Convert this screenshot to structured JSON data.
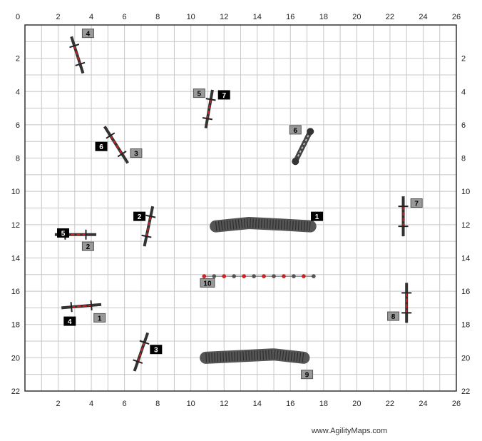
{
  "credit": "www.AgilityMaps.com",
  "axes": {
    "x_ticks": [
      "0",
      "2",
      "4",
      "6",
      "8",
      "10",
      "12",
      "14",
      "16",
      "18",
      "20",
      "22",
      "24",
      "26"
    ],
    "y_ticks": [
      "2",
      "4",
      "6",
      "8",
      "10",
      "12",
      "14",
      "16",
      "18",
      "20",
      "22"
    ]
  },
  "jumps": [
    {
      "name": "jump-a",
      "x1": 2.8,
      "y1": 0.7,
      "x2": 3.5,
      "y2": 2.9,
      "bar_color": "#cc2222"
    },
    {
      "name": "jump-b",
      "x1": 4.8,
      "y1": 6.1,
      "x2": 6.2,
      "y2": 8.3,
      "bar_color": "#cc2222"
    },
    {
      "name": "jump-c",
      "x1": 11.3,
      "y1": 3.9,
      "x2": 10.9,
      "y2": 6.2,
      "bar_color": "#cc2222"
    },
    {
      "name": "jump-d",
      "x1": 7.7,
      "y1": 10.9,
      "x2": 7.2,
      "y2": 13.3,
      "bar_color": "#cc2222"
    },
    {
      "name": "jump-e",
      "x1": 1.8,
      "y1": 12.6,
      "x2": 4.3,
      "y2": 12.6,
      "bar_color": "#cc2222"
    },
    {
      "name": "jump-f",
      "x1": 2.2,
      "y1": 17.0,
      "x2": 4.6,
      "y2": 16.8,
      "bar_color": "#cc2222"
    },
    {
      "name": "jump-g",
      "x1": 7.4,
      "y1": 18.5,
      "x2": 6.6,
      "y2": 20.8,
      "bar_color": "#cc2222"
    },
    {
      "name": "jump-h",
      "x1": 22.8,
      "y1": 10.3,
      "x2": 22.8,
      "y2": 12.7,
      "bar_color": "#cc2222"
    },
    {
      "name": "jump-i",
      "x1": 23.0,
      "y1": 15.5,
      "x2": 23.0,
      "y2": 17.9,
      "bar_color": "#cc2222"
    }
  ],
  "tunnels": [
    {
      "name": "tunnel-1",
      "points": [
        [
          11.5,
          12.1
        ],
        [
          13.5,
          11.9
        ],
        [
          15.5,
          12.0
        ],
        [
          17.2,
          12.1
        ]
      ]
    },
    {
      "name": "tunnel-9",
      "points": [
        [
          10.9,
          20.0
        ],
        [
          13.0,
          19.9
        ],
        [
          15.0,
          19.8
        ],
        [
          16.8,
          20.0
        ]
      ]
    }
  ],
  "tire": {
    "name": "tire-6",
    "x1": 17.2,
    "y1": 6.4,
    "x2": 16.3,
    "y2": 8.2
  },
  "weaves": {
    "name": "weave-poles-10",
    "x1": 10.8,
    "x2": 17.4,
    "y": 15.1,
    "poles": 12
  },
  "labels": [
    {
      "text": "4",
      "kind": "gray",
      "x": 3.8,
      "y": 0.5
    },
    {
      "text": "5",
      "kind": "gray",
      "x": 10.5,
      "y": 4.1
    },
    {
      "text": "7",
      "kind": "black",
      "x": 12.0,
      "y": 4.2
    },
    {
      "text": "6",
      "kind": "gray",
      "x": 16.3,
      "y": 6.3
    },
    {
      "text": "6",
      "kind": "black",
      "x": 4.6,
      "y": 7.3
    },
    {
      "text": "3",
      "kind": "gray",
      "x": 6.7,
      "y": 7.7
    },
    {
      "text": "10",
      "kind": "gray",
      "x": 11.0,
      "y": 15.5
    },
    {
      "text": "1",
      "kind": "black",
      "x": 17.6,
      "y": 11.5
    },
    {
      "text": "2",
      "kind": "black",
      "x": 6.9,
      "y": 11.5
    },
    {
      "text": "5",
      "kind": "black",
      "x": 2.3,
      "y": 12.5
    },
    {
      "text": "2",
      "kind": "gray",
      "x": 3.8,
      "y": 13.3
    },
    {
      "text": "4",
      "kind": "black",
      "x": 2.7,
      "y": 17.8
    },
    {
      "text": "1",
      "kind": "gray",
      "x": 4.5,
      "y": 17.6
    },
    {
      "text": "3",
      "kind": "black",
      "x": 7.9,
      "y": 19.5
    },
    {
      "text": "9",
      "kind": "gray",
      "x": 17.0,
      "y": 21.0
    },
    {
      "text": "7",
      "kind": "gray",
      "x": 23.6,
      "y": 10.7
    },
    {
      "text": "8",
      "kind": "gray",
      "x": 22.2,
      "y": 17.5
    }
  ],
  "colors": {
    "grid": "#c8c8c8",
    "frame": "#333333",
    "gray_label": "#999999",
    "black_label": "#000000",
    "tunnel": "#555555"
  }
}
